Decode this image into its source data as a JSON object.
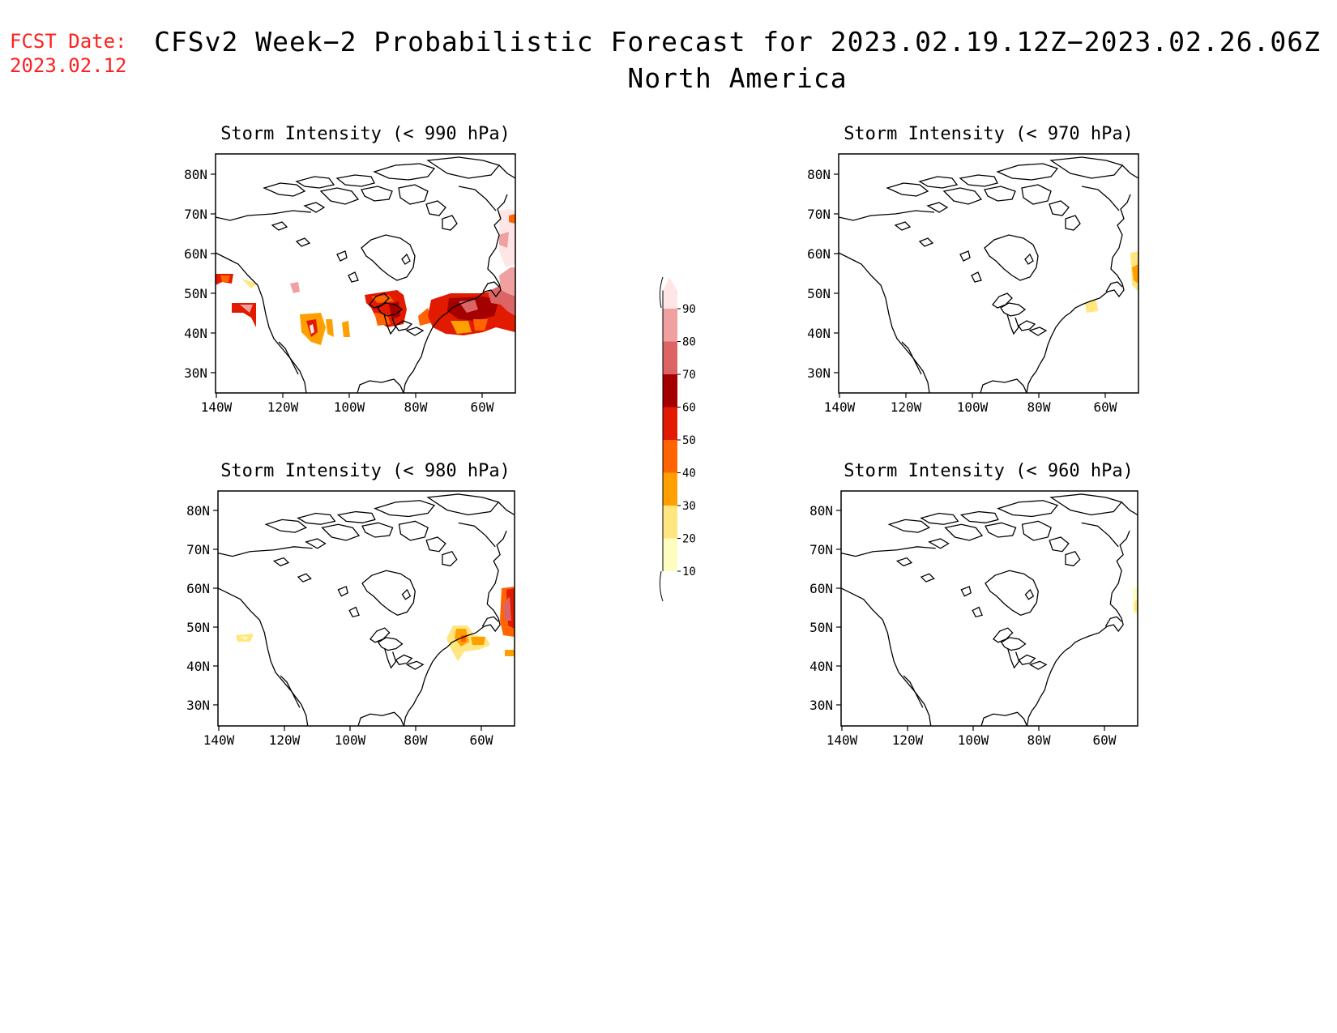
{
  "header": {
    "fcst_label": "FCST Date:",
    "fcst_date": "2023.02.12",
    "title": "CFSv2 Week−2 Probabilistic Forecast for 2023.02.19.12Z−2023.02.26.06Z",
    "subtitle": "North America"
  },
  "axes": {
    "lat_labels": [
      "80N",
      "70N",
      "60N",
      "50N",
      "40N",
      "30N"
    ],
    "lon_labels": [
      "140W",
      "120W",
      "100W",
      "80W",
      "60W"
    ]
  },
  "panels": [
    {
      "id": "p990",
      "title": "Storm Intensity (< 990 hPa)"
    },
    {
      "id": "p970",
      "title": "Storm Intensity (< 970 hPa)"
    },
    {
      "id": "p980",
      "title": "Storm Intensity (< 980 hPa)"
    },
    {
      "id": "p960",
      "title": "Storm Intensity (< 960 hPa)"
    }
  ],
  "colorbar": {
    "levels": [
      "10",
      "20",
      "30",
      "40",
      "50",
      "60",
      "70",
      "80",
      "90"
    ],
    "colors": [
      "#fffcc0",
      "#ffe680",
      "#ffa000",
      "#ff6400",
      "#e11a00",
      "#a50000",
      "#dc6464",
      "#f0a0a0",
      "#ffe6e6"
    ]
  }
}
